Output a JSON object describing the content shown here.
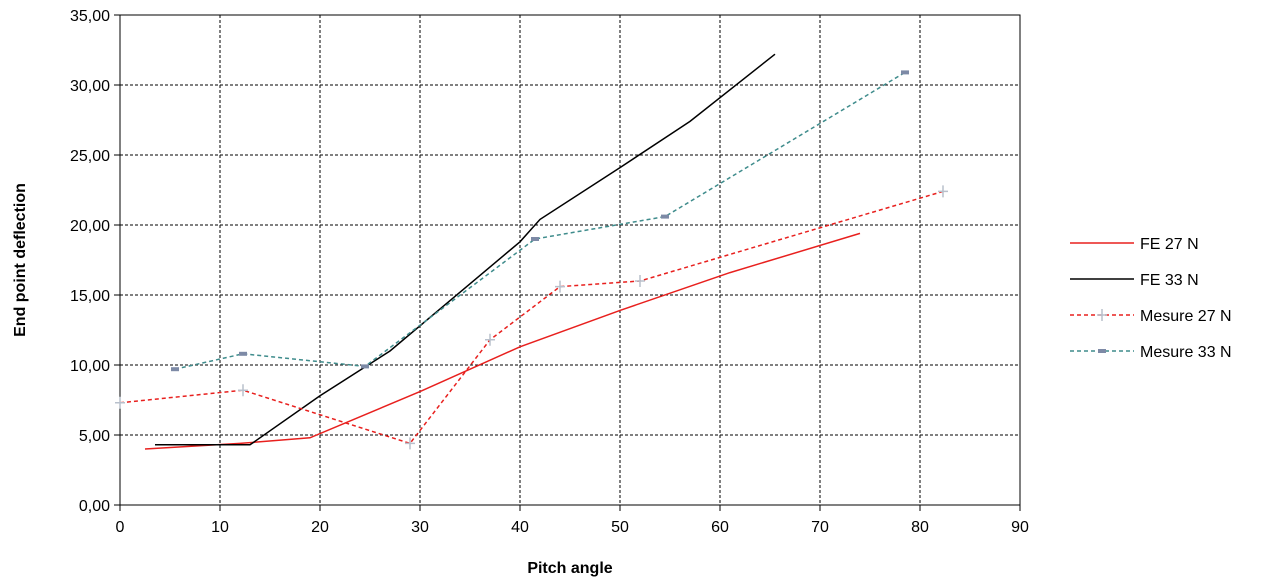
{
  "chart_data": {
    "type": "line",
    "title": "",
    "xlabel": "Pitch angle",
    "ylabel": "End point deflection",
    "xlim": [
      0,
      90
    ],
    "ylim": [
      0,
      35
    ],
    "x_ticks": [
      0,
      10,
      20,
      30,
      40,
      50,
      60,
      70,
      80,
      90
    ],
    "y_ticks": [
      0,
      5,
      10,
      15,
      20,
      25,
      30,
      35
    ],
    "x_tick_labels": [
      "0",
      "10",
      "20",
      "30",
      "40",
      "50",
      "60",
      "70",
      "80",
      "90"
    ],
    "y_tick_labels": [
      "0,00",
      "5,00",
      "10,00",
      "15,00",
      "20,00",
      "25,00",
      "30,00",
      "35,00"
    ],
    "grid": true,
    "legend_position": "right",
    "series": [
      {
        "name": "FE 27 N",
        "color": "#e8201e",
        "style": "solid",
        "marker": "none",
        "x": [
          2.5,
          12,
          19,
          30,
          40,
          50,
          61,
          74
        ],
        "y": [
          4.0,
          4.4,
          4.8,
          8.1,
          11.3,
          13.9,
          16.6,
          19.4
        ]
      },
      {
        "name": "FE 33 N",
        "color": "#000000",
        "style": "solid",
        "marker": "none",
        "x": [
          3.5,
          13,
          20,
          27,
          35,
          40,
          42,
          50,
          57,
          65.5
        ],
        "y": [
          4.3,
          4.3,
          7.8,
          11.0,
          15.8,
          18.8,
          20.4,
          24.1,
          27.4,
          32.2
        ]
      },
      {
        "name": "Mesure 27 N",
        "color": "#e8201e",
        "style": "dashed",
        "marker": "plus",
        "x": [
          0,
          12.3,
          29,
          37,
          44,
          52,
          82.3
        ],
        "y": [
          7.3,
          8.2,
          4.4,
          11.8,
          15.6,
          16.0,
          22.4
        ]
      },
      {
        "name": "Mesure 33 N",
        "color": "#3f8c8c",
        "style": "dashed",
        "marker": "dash",
        "x": [
          5.5,
          12.3,
          24.5,
          41.5,
          54.5,
          78.5
        ],
        "y": [
          9.7,
          10.8,
          9.9,
          19.0,
          20.6,
          30.9
        ]
      }
    ]
  }
}
